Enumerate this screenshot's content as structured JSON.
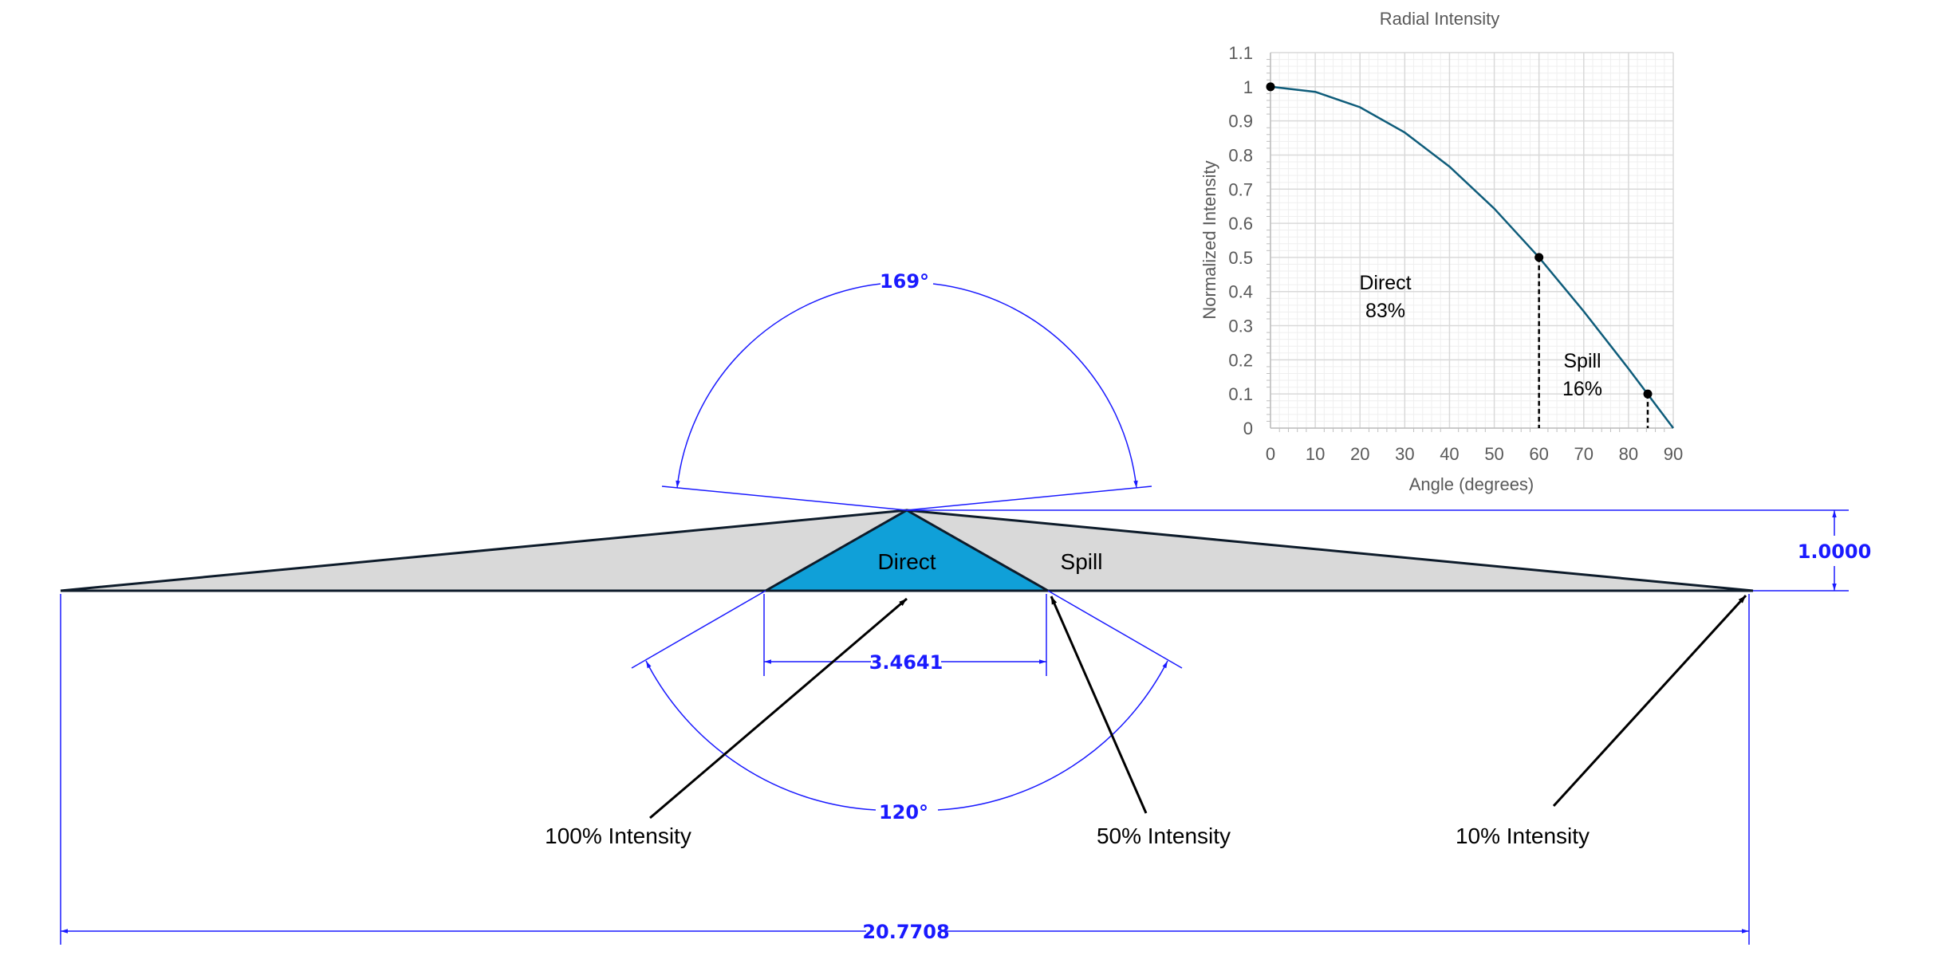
{
  "diagram": {
    "direct_label": "Direct",
    "spill_label": "Spill",
    "dim_height": "1.0000",
    "dim_direct_width": "3.4641",
    "dim_total_width": "20.7708",
    "angle_top": "169°",
    "angle_bottom": "120°",
    "callout_100": "100% Intensity",
    "callout_50": "50% Intensity",
    "callout_10": "10% Intensity",
    "colors": {
      "dimension": "#1a1aff",
      "direct_fill": "#10a0d8",
      "spill_fill": "#d9d9d9",
      "outline": "#0d1b2a"
    }
  },
  "chart_data": {
    "type": "line",
    "title": "Radial Intensity",
    "xlabel": "Angle (degrees)",
    "ylabel": "Normalized Intensity",
    "xlim": [
      0,
      90
    ],
    "ylim": [
      0,
      1.1
    ],
    "x_ticks": [
      "0",
      "10",
      "20",
      "30",
      "40",
      "50",
      "60",
      "70",
      "80",
      "90"
    ],
    "y_ticks": [
      "0",
      "0.1",
      "0.2",
      "0.3",
      "0.4",
      "0.5",
      "0.6",
      "0.7",
      "0.8",
      "0.9",
      "1",
      "1.1"
    ],
    "grid": true,
    "series": [
      {
        "x": [
          0,
          10,
          20,
          30,
          40,
          50,
          60,
          70,
          80,
          90
        ],
        "y": [
          1,
          0.985,
          0.94,
          0.866,
          0.766,
          0.643,
          0.5,
          0.342,
          0.174,
          0
        ],
        "color": "#0e5c7a"
      }
    ],
    "markers": [
      {
        "x": 0,
        "y": 1
      },
      {
        "x": 60,
        "y": 0.5
      },
      {
        "x": 84.3,
        "y": 0.1
      }
    ],
    "dropline_x": [
      60,
      84.3
    ],
    "annotations": [
      {
        "text": "Direct",
        "sub": "83%"
      },
      {
        "text": "Spill",
        "sub": "16%"
      }
    ]
  }
}
